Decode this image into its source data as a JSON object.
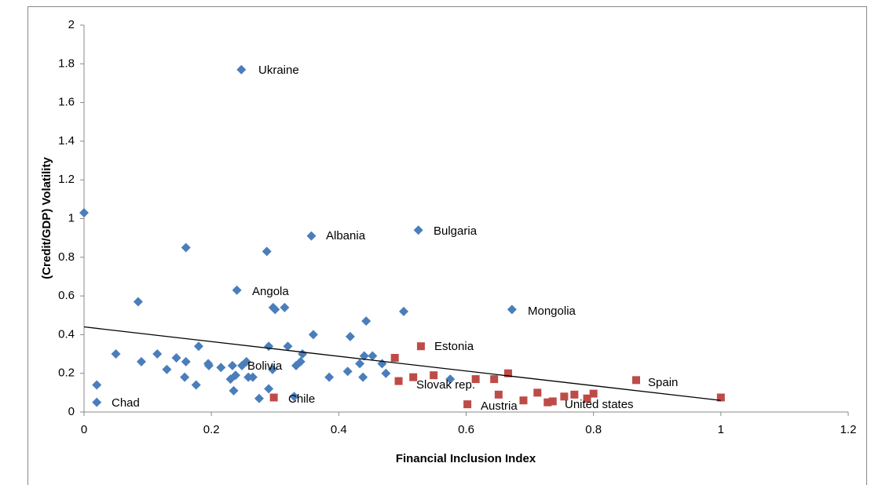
{
  "chart_data": {
    "type": "scatter",
    "xlabel": "Financial Inclusion Index",
    "ylabel": "(Credit/GDP) Volatility",
    "xlim": [
      0,
      1.2
    ],
    "ylim": [
      0,
      2
    ],
    "xticks": [
      0,
      0.2,
      0.4,
      0.6,
      0.8,
      1,
      1.2
    ],
    "yticks": [
      0,
      0.2,
      0.4,
      0.6,
      0.8,
      1,
      1.2,
      1.4,
      1.6,
      1.8,
      2
    ],
    "grid": false,
    "series": [
      {
        "color": "#4a7ebb",
        "marker": "diamond",
        "x": [
          0,
          0.02,
          0.02,
          0.05,
          0.085,
          0.09,
          0.115,
          0.13,
          0.145,
          0.16,
          0.16,
          0.158,
          0.176,
          0.18,
          0.195,
          0.196,
          0.215,
          0.233,
          0.23,
          0.235,
          0.238,
          0.24,
          0.247,
          0.248,
          0.255,
          0.258,
          0.265,
          0.275,
          0.287,
          0.29,
          0.29,
          0.296,
          0.297,
          0.3,
          0.315,
          0.32,
          0.33,
          0.333,
          0.34,
          0.343,
          0.357,
          0.36,
          0.385,
          0.414,
          0.418,
          0.433,
          0.438,
          0.44,
          0.443,
          0.453,
          0.468,
          0.474,
          0.502,
          0.525,
          0.575,
          0.672
        ],
        "y": [
          1.03,
          0.14,
          0.05,
          0.3,
          0.57,
          0.26,
          0.3,
          0.22,
          0.28,
          0.85,
          0.26,
          0.18,
          0.14,
          0.34,
          0.25,
          0.24,
          0.23,
          0.24,
          0.17,
          0.11,
          0.19,
          0.63,
          1.77,
          0.24,
          0.26,
          0.18,
          0.18,
          0.07,
          0.83,
          0.34,
          0.12,
          0.22,
          0.54,
          0.53,
          0.54,
          0.34,
          0.08,
          0.24,
          0.26,
          0.3,
          0.91,
          0.4,
          0.18,
          0.21,
          0.39,
          0.25,
          0.18,
          0.29,
          0.47,
          0.29,
          0.25,
          0.2,
          0.52,
          0.94,
          0.17,
          0.53
        ]
      },
      {
        "color": "#be4b48",
        "marker": "square",
        "x": [
          0.298,
          0.488,
          0.494,
          0.517,
          0.529,
          0.549,
          0.602,
          0.615,
          0.644,
          0.651,
          0.666,
          0.69,
          0.712,
          0.728,
          0.736,
          0.754,
          0.77,
          0.79,
          0.8,
          0.867,
          1
        ],
        "y": [
          0.075,
          0.28,
          0.16,
          0.18,
          0.34,
          0.19,
          0.04,
          0.17,
          0.17,
          0.09,
          0.2,
          0.06,
          0.1,
          0.05,
          0.055,
          0.08,
          0.09,
          0.07,
          0.095,
          0.165,
          0.075
        ]
      }
    ],
    "trendline": {
      "color": "#000000",
      "x": [
        0,
        1
      ],
      "y": [
        0.44,
        0.06
      ]
    },
    "annotations": [
      "Ukraine",
      "Albania",
      "Bulgaria",
      "Angola",
      "Mongolia",
      "Estonia",
      "Bolivia",
      "Spain",
      "Slovak rep.",
      "Chile",
      "United states",
      "Austria",
      "Chad"
    ]
  }
}
